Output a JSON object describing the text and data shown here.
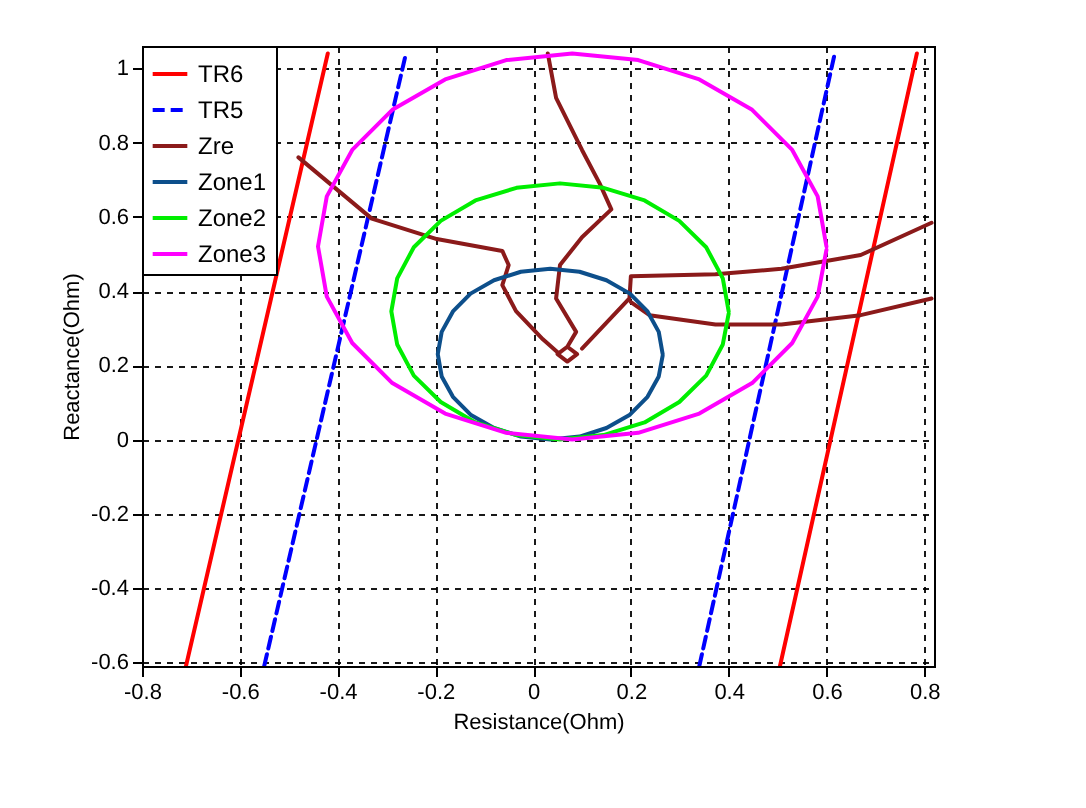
{
  "chart_data": {
    "type": "line",
    "xlabel": "Resistance(Ohm)",
    "ylabel": "Reactance(Ohm)",
    "xlim": [
      -0.8,
      0.82
    ],
    "ylim": [
      -0.61,
      1.06
    ],
    "xticks": [
      -0.8,
      -0.6,
      -0.4,
      -0.2,
      0,
      0.2,
      0.4,
      0.6,
      0.8
    ],
    "yticks": [
      -0.6,
      -0.4,
      -0.2,
      0,
      0.2,
      0.4,
      0.6,
      0.8,
      1
    ],
    "grid": true,
    "legend": "top left",
    "marker": "none",
    "series": [
      {
        "name": "TR6",
        "color": "#ff0000",
        "line_style": "solid",
        "x": [
          -0.71,
          -0.42
        ],
        "values": [
          -0.61,
          1.04
        ]
      },
      {
        "color": "#ff0000",
        "line_style": "solid",
        "x": [
          0.505,
          0.785
        ],
        "values": [
          -0.61,
          1.04
        ]
      },
      {
        "name": "TR5",
        "color": "#0000ff",
        "line_style": "dashed",
        "x": [
          -0.55,
          -0.26
        ],
        "values": [
          -0.61,
          1.04
        ]
      },
      {
        "color": "#0000ff",
        "line_style": "dashed",
        "x": [
          0.34,
          0.617
        ],
        "values": [
          -0.61,
          1.04
        ]
      },
      {
        "name": "Zre",
        "color": "#8b1a1a",
        "line_style": "solid",
        "x": [
          -0.48,
          -0.33,
          -0.197,
          -0.063,
          -0.05,
          -0.063,
          -0.035,
          0.02,
          0.05
        ],
        "values": [
          0.76,
          0.595,
          0.54,
          0.508,
          0.47,
          0.416,
          0.346,
          0.27,
          0.235
        ]
      },
      {
        "color": "#8b1a1a",
        "line_style": "solid",
        "x": [
          0.03,
          0.047,
          0.1,
          0.136,
          0.16,
          0.1,
          0.055,
          0.047,
          0.088,
          0.07,
          0.05,
          0.07,
          0.09,
          0.07,
          0.05
        ],
        "values": [
          1.04,
          0.92,
          0.78,
          0.69,
          0.62,
          0.545,
          0.47,
          0.38,
          0.29,
          0.25,
          0.23,
          0.21,
          0.23,
          0.25,
          0.23
        ]
      },
      {
        "color": "#8b1a1a",
        "line_style": "solid",
        "x": [
          0.815,
          0.67,
          0.508,
          0.373,
          0.2,
          0.197,
          0.1
        ],
        "values": [
          0.584,
          0.497,
          0.46,
          0.445,
          0.44,
          0.38,
          0.245
        ]
      },
      {
        "color": "#8b1a1a",
        "line_style": "solid",
        "x": [
          0.815,
          0.67,
          0.508,
          0.373,
          0.238,
          0.2
        ],
        "values": [
          0.38,
          0.335,
          0.31,
          0.31,
          0.335,
          0.37
        ]
      },
      {
        "name": "Zone1",
        "color": "#0d4f8b",
        "line_style": "solid",
        "x": [
          0.265,
          0.257,
          0.234,
          0.198,
          0.15,
          0.095,
          0.035,
          -0.025,
          -0.08,
          -0.128,
          -0.164,
          -0.187,
          -0.195,
          -0.187,
          -0.164,
          -0.128,
          -0.08,
          -0.025,
          0.035,
          0.095,
          0.15,
          0.198,
          0.234,
          0.257,
          0.265
        ],
        "values": [
          0.23,
          0.29,
          0.345,
          0.393,
          0.429,
          0.452,
          0.46,
          0.452,
          0.429,
          0.393,
          0.345,
          0.29,
          0.23,
          0.17,
          0.115,
          0.067,
          0.031,
          0.008,
          0,
          0.008,
          0.031,
          0.067,
          0.115,
          0.17,
          0.226
        ]
      },
      {
        "name": "Zone2",
        "color": "#00ee00",
        "line_style": "solid",
        "x": [
          0.4,
          0.388,
          0.354,
          0.299,
          0.228,
          0.144,
          0.055,
          -0.034,
          -0.118,
          -0.189,
          -0.244,
          -0.278,
          -0.29,
          -0.278,
          -0.244,
          -0.189,
          -0.118,
          -0.034,
          0.055,
          0.144,
          0.228,
          0.299,
          0.354,
          0.388,
          0.4
        ],
        "values": [
          0.345,
          0.434,
          0.518,
          0.589,
          0.644,
          0.678,
          0.69,
          0.678,
          0.644,
          0.589,
          0.518,
          0.434,
          0.345,
          0.256,
          0.172,
          0.101,
          0.046,
          0.012,
          0,
          0.012,
          0.046,
          0.101,
          0.172,
          0.256,
          0.339
        ]
      },
      {
        "name": "Zone3",
        "color": "#ff00ff",
        "line_style": "solid",
        "x": [
          0.6,
          0.582,
          0.53,
          0.448,
          0.34,
          0.215,
          0.08,
          -0.055,
          -0.18,
          -0.288,
          -0.37,
          -0.422,
          -0.44,
          -0.422,
          -0.37,
          -0.288,
          -0.18,
          -0.055,
          0.08,
          0.215,
          0.34,
          0.448,
          0.53,
          0.582,
          0.6
        ],
        "values": [
          0.52,
          0.655,
          0.78,
          0.888,
          0.97,
          1.022,
          1.04,
          1.022,
          0.97,
          0.888,
          0.78,
          0.655,
          0.52,
          0.385,
          0.26,
          0.152,
          0.07,
          0.018,
          0,
          0.018,
          0.07,
          0.152,
          0.26,
          0.385,
          0.511
        ]
      }
    ]
  }
}
